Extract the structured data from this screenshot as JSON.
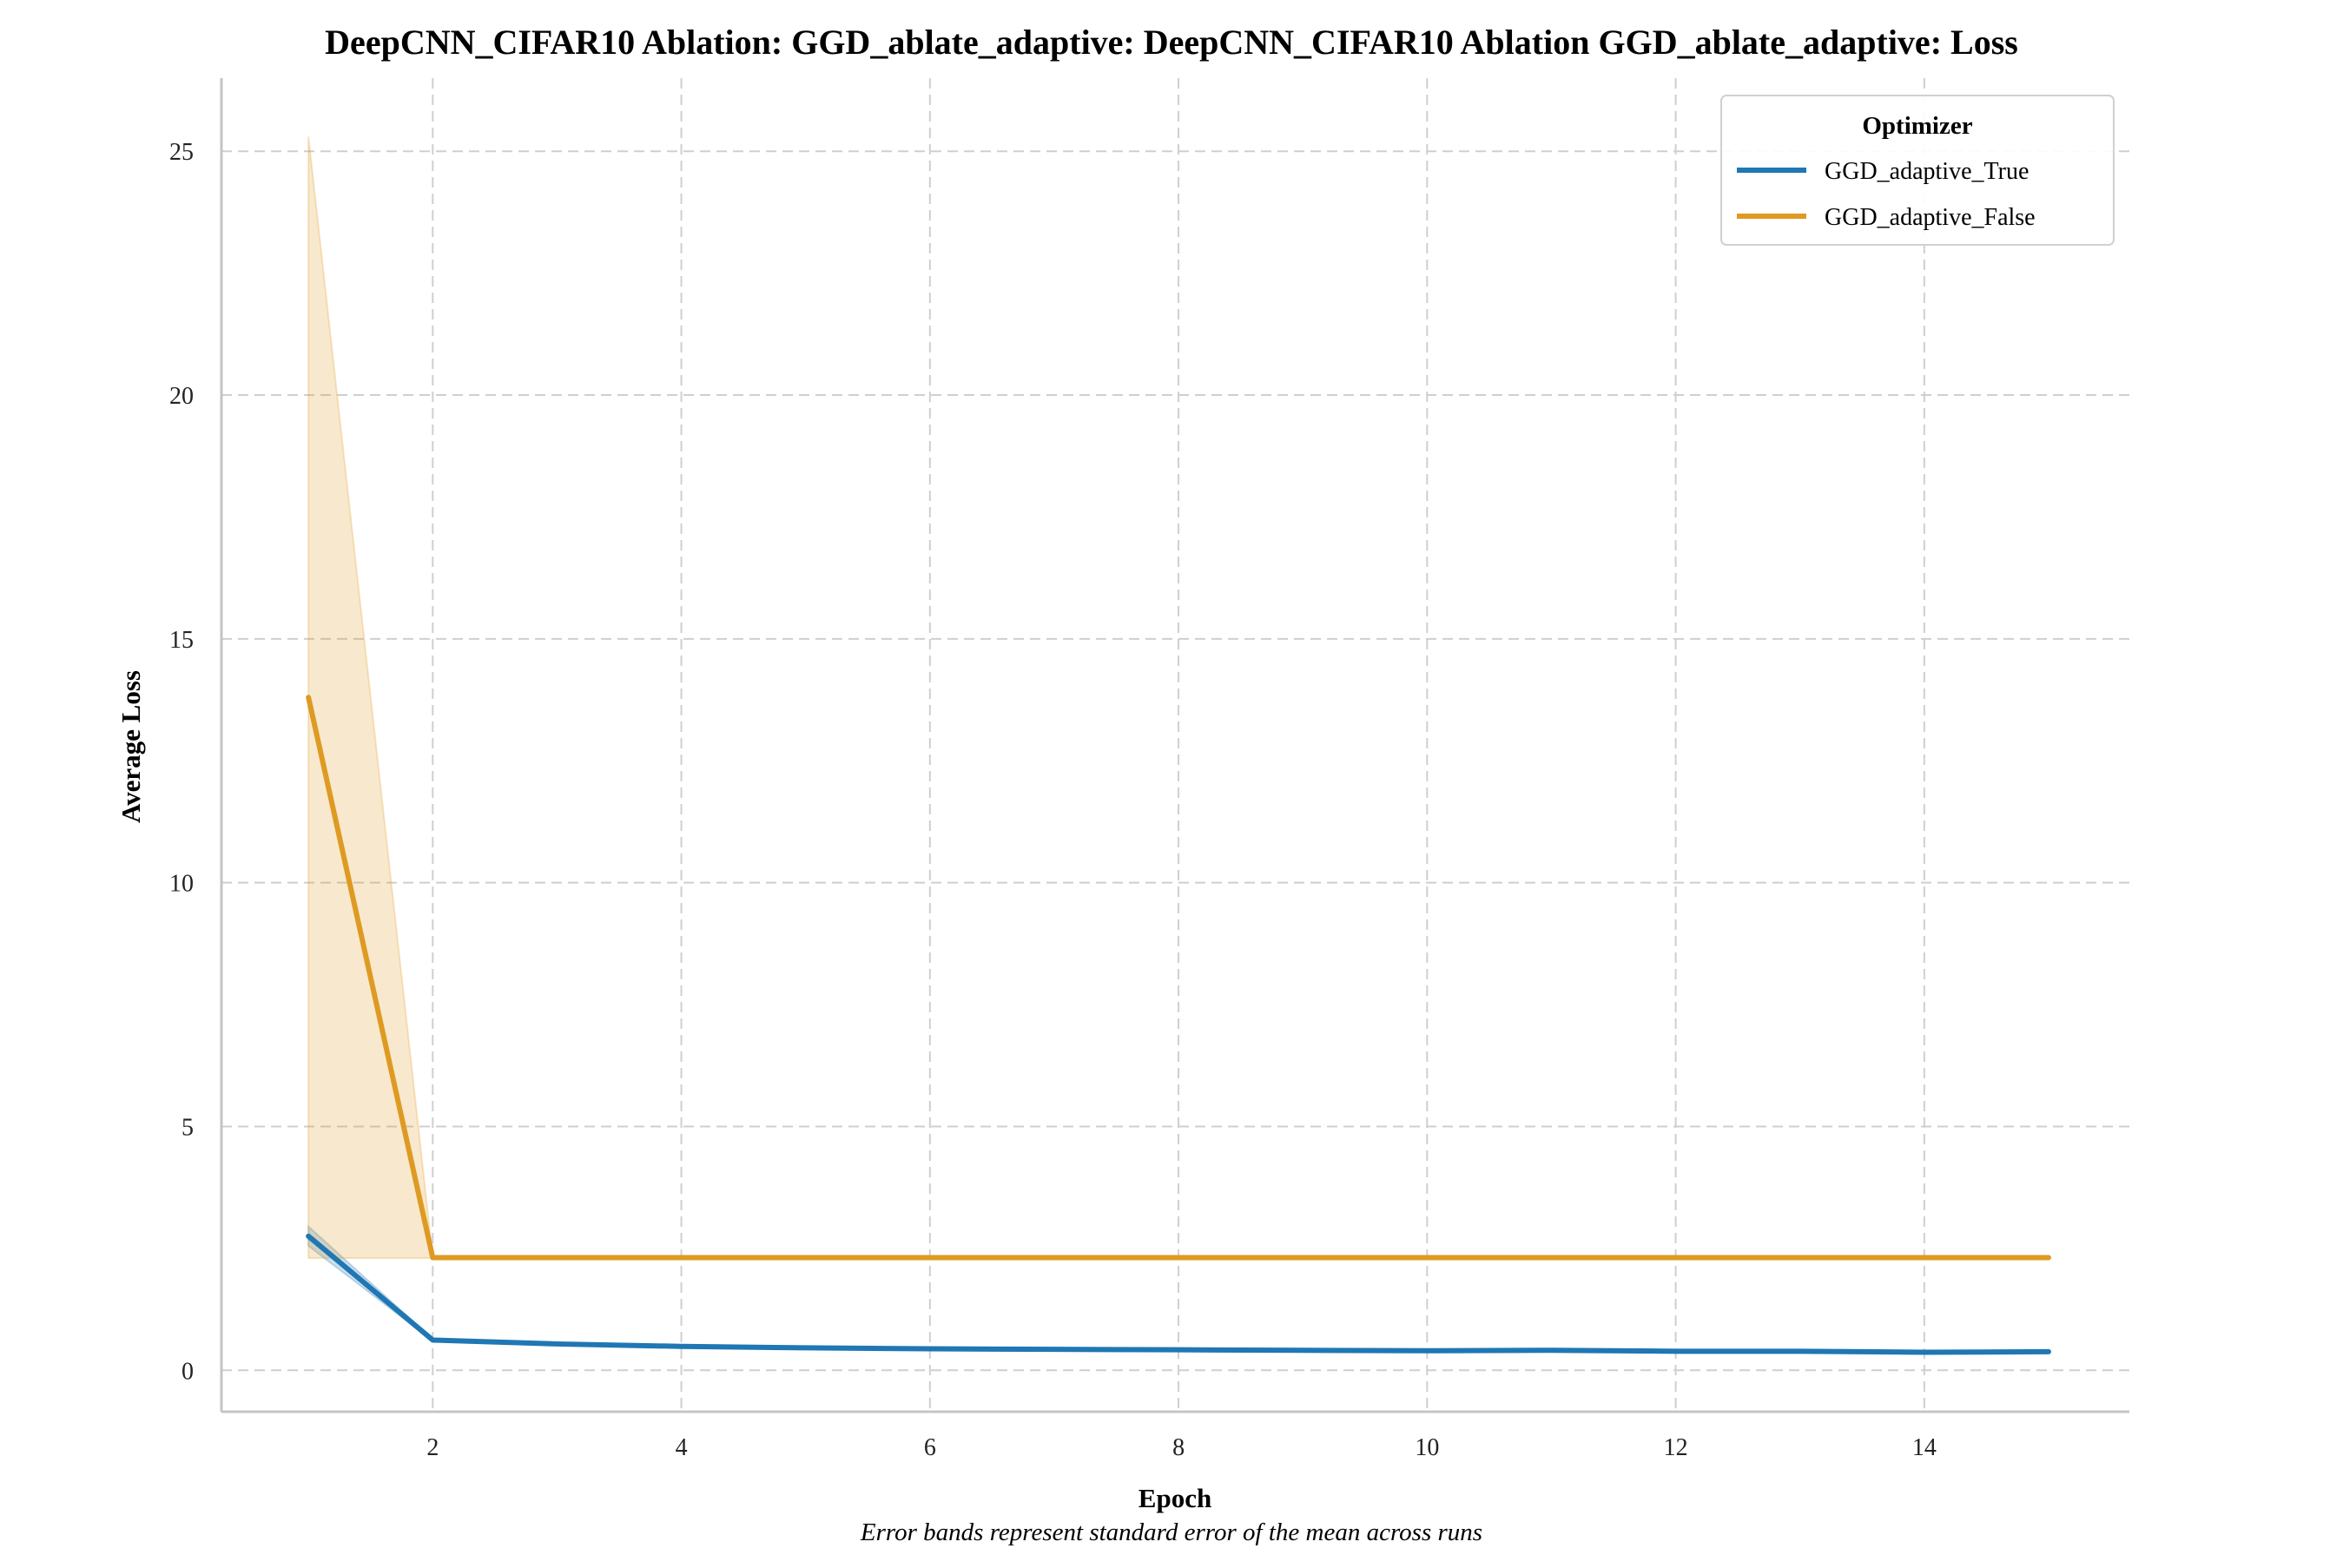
{
  "chart_data": {
    "type": "line",
    "title": "DeepCNN_CIFAR10 Ablation: GGD_ablate_adaptive: DeepCNN_CIFAR10 Ablation GGD_ablate_adaptive: Loss",
    "xlabel": "Epoch",
    "ylabel": "Average Loss",
    "caption": "Error bands represent standard error of the mean across runs",
    "xlim": [
      0.3,
      15.65
    ],
    "ylim": [
      -0.85,
      26.5
    ],
    "xticks": [
      2,
      4,
      6,
      8,
      10,
      12,
      14
    ],
    "yticks": [
      0,
      5,
      10,
      15,
      20,
      25
    ],
    "grid": true,
    "legend": {
      "title": "Optimizer",
      "position": "top-right"
    },
    "x": [
      1,
      2,
      3,
      4,
      5,
      6,
      7,
      8,
      9,
      10,
      11,
      12,
      13,
      14,
      15
    ],
    "series": [
      {
        "name": "GGD_adaptive_True",
        "color": "#1f77b4",
        "values": [
          2.75,
          0.62,
          0.54,
          0.49,
          0.46,
          0.44,
          0.43,
          0.42,
          0.41,
          0.4,
          0.41,
          0.39,
          0.39,
          0.37,
          0.38
        ],
        "band_lower": [
          2.55,
          0.6,
          0.52,
          0.48,
          0.45,
          0.43,
          0.42,
          0.41,
          0.4,
          0.39,
          0.4,
          0.38,
          0.38,
          0.36,
          0.37
        ],
        "band_upper": [
          2.95,
          0.64,
          0.56,
          0.5,
          0.47,
          0.45,
          0.44,
          0.43,
          0.42,
          0.41,
          0.42,
          0.4,
          0.4,
          0.38,
          0.39
        ]
      },
      {
        "name": "GGD_adaptive_False",
        "color": "#de9a22",
        "values": [
          13.8,
          2.31,
          2.31,
          2.31,
          2.31,
          2.31,
          2.31,
          2.31,
          2.31,
          2.31,
          2.31,
          2.31,
          2.31,
          2.31,
          2.31
        ],
        "band_lower": [
          2.3,
          2.3,
          2.3,
          2.3,
          2.3,
          2.3,
          2.3,
          2.3,
          2.3,
          2.3,
          2.3,
          2.3,
          2.3,
          2.3,
          2.3
        ],
        "band_upper": [
          25.3,
          2.32,
          2.32,
          2.32,
          2.32,
          2.32,
          2.32,
          2.32,
          2.32,
          2.32,
          2.32,
          2.32,
          2.32,
          2.32,
          2.32
        ]
      }
    ]
  }
}
